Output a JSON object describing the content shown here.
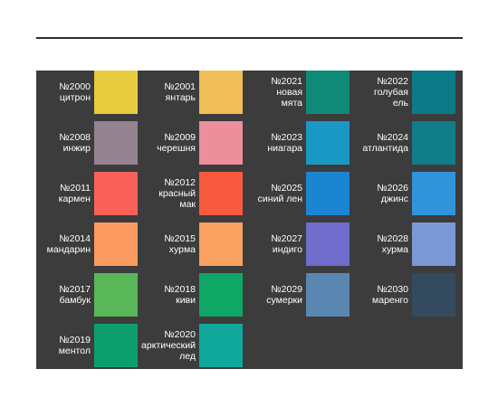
{
  "swatches": [
    {
      "code": "№2000",
      "name": [
        "цитрон"
      ],
      "color": "#e9cb3f"
    },
    {
      "code": "№2001",
      "name": [
        "янтарь"
      ],
      "color": "#f1bd57"
    },
    {
      "code": "№2021",
      "name": [
        "новая",
        "мята"
      ],
      "color": "#0f8a76"
    },
    {
      "code": "№2022",
      "name": [
        "голубая",
        "ель"
      ],
      "color": "#0c7a87"
    },
    {
      "code": "№2008",
      "name": [
        "инжир"
      ],
      "color": "#958391"
    },
    {
      "code": "№2009",
      "name": [
        "черешня"
      ],
      "color": "#eb8f9c"
    },
    {
      "code": "№2023",
      "name": [
        "ниагара"
      ],
      "color": "#1a98c4"
    },
    {
      "code": "№2024",
      "name": [
        "атлантида"
      ],
      "color": "#117d88"
    },
    {
      "code": "№2011",
      "name": [
        "кармен"
      ],
      "color": "#fa6159"
    },
    {
      "code": "№2012",
      "name": [
        "красный",
        "мак"
      ],
      "color": "#f85a3f"
    },
    {
      "code": "№2025",
      "name": [
        "синий лен"
      ],
      "color": "#1c85d2"
    },
    {
      "code": "№2026",
      "name": [
        "джинс"
      ],
      "color": "#2f94da"
    },
    {
      "code": "№2014",
      "name": [
        "мандарин"
      ],
      "color": "#fc9b60"
    },
    {
      "code": "№2015",
      "name": [
        "хурма"
      ],
      "color": "#f8a160"
    },
    {
      "code": "№2027",
      "name": [
        "индиго"
      ],
      "color": "#6f6ccb"
    },
    {
      "code": "№2028",
      "name": [
        "хурма"
      ],
      "color": "#7c98d4"
    },
    {
      "code": "№2017",
      "name": [
        "бамбук"
      ],
      "color": "#5ab759"
    },
    {
      "code": "№2018",
      "name": [
        "киви"
      ],
      "color": "#0fa765"
    },
    {
      "code": "№2029",
      "name": [
        "сумерки"
      ],
      "color": "#5987b1"
    },
    {
      "code": "№2030",
      "name": [
        "маренго"
      ],
      "color": "#344a5e"
    },
    {
      "code": "№2019",
      "name": [
        "ментол"
      ],
      "color": "#0d9e6e"
    },
    {
      "code": "№2020",
      "name": [
        "арктический",
        "лед"
      ],
      "color": "#10a89b"
    }
  ]
}
